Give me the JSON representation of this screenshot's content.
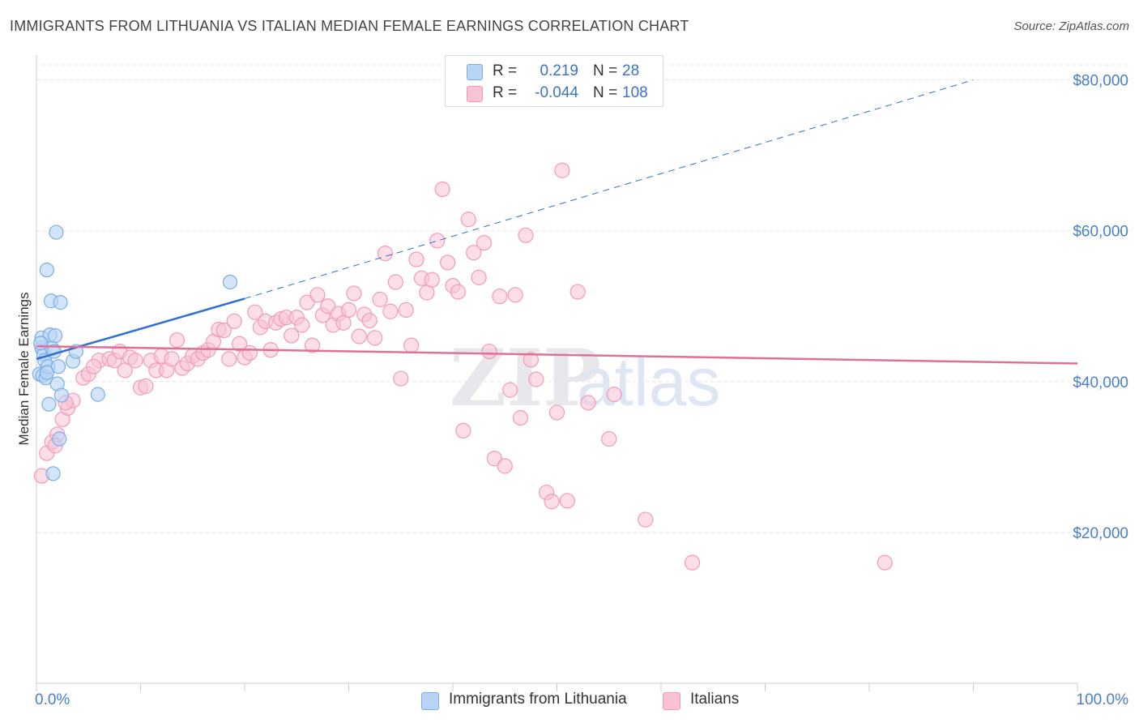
{
  "chart_data": {
    "type": "scatter",
    "title": "IMMIGRANTS FROM LITHUANIA VS ITALIAN MEDIAN FEMALE EARNINGS CORRELATION CHART",
    "source": "Source: ZipAtlas.com",
    "xlabel": "",
    "ylabel": "Median Female Earnings",
    "xlim": [
      0,
      100
    ],
    "ylim": [
      0,
      82000
    ],
    "x_tick_labels": [
      "0.0%",
      "100.0%"
    ],
    "y_ticks": [
      20000,
      40000,
      60000,
      80000
    ],
    "y_tick_labels": [
      "$20,000",
      "$40,000",
      "$60,000",
      "$80,000"
    ],
    "grid": true,
    "watermark": "ZIPatlas",
    "legend": {
      "position": "top-center",
      "entries": [
        {
          "r_label": "R =",
          "r_value": "0.219",
          "n_label": "N =",
          "n_value": "28"
        },
        {
          "r_label": "R =",
          "r_value": "-0.044",
          "n_label": "N =",
          "n_value": "108"
        }
      ]
    },
    "series": [
      {
        "name": "Immigrants from Lithuania",
        "color": "#7aaee8",
        "fill": "#b9d3f5",
        "trend_color": "#2f6fcf",
        "trend": {
          "x0": 0,
          "y0": 43000,
          "x1_solid": 20,
          "y1_solid": 51000,
          "x1_dashed": 90,
          "y1_dashed": 80000
        },
        "points": [
          [
            0.3,
            41000
          ],
          [
            0.5,
            44500
          ],
          [
            0.5,
            45800
          ],
          [
            0.6,
            40800
          ],
          [
            0.7,
            43600
          ],
          [
            0.8,
            42800
          ],
          [
            0.9,
            40500
          ],
          [
            1.0,
            54800
          ],
          [
            1.1,
            42000
          ],
          [
            1.2,
            37000
          ],
          [
            1.3,
            46200
          ],
          [
            1.4,
            50700
          ],
          [
            1.5,
            44400
          ],
          [
            1.6,
            27800
          ],
          [
            1.7,
            44000
          ],
          [
            1.8,
            46100
          ],
          [
            1.9,
            59800
          ],
          [
            2.0,
            39700
          ],
          [
            2.1,
            42000
          ],
          [
            2.2,
            32400
          ],
          [
            2.3,
            50500
          ],
          [
            2.4,
            38200
          ],
          [
            3.5,
            42700
          ],
          [
            3.8,
            44000
          ],
          [
            5.9,
            38300
          ],
          [
            18.6,
            53200
          ],
          [
            1.0,
            41200
          ],
          [
            0.4,
            45100
          ]
        ]
      },
      {
        "name": "Italians",
        "color": "#f29ab8",
        "fill": "#f8c3d5",
        "trend_color": "#e07098",
        "trend": {
          "x0": 0,
          "y0": 44700,
          "x1": 100,
          "y1": 42400
        },
        "points": [
          [
            0.5,
            27500
          ],
          [
            1.0,
            30500
          ],
          [
            1.5,
            32000
          ],
          [
            2.0,
            33000
          ],
          [
            2.5,
            35000
          ],
          [
            3.0,
            36500
          ],
          [
            3.5,
            37500
          ],
          [
            4.5,
            40500
          ],
          [
            5.0,
            41000
          ],
          [
            6.0,
            42800
          ],
          [
            7.0,
            43000
          ],
          [
            7.5,
            42800
          ],
          [
            8.0,
            44000
          ],
          [
            8.5,
            41500
          ],
          [
            9.0,
            43200
          ],
          [
            9.5,
            42800
          ],
          [
            10.0,
            39200
          ],
          [
            10.5,
            39400
          ],
          [
            11.0,
            42800
          ],
          [
            11.5,
            41500
          ],
          [
            12.0,
            43400
          ],
          [
            12.5,
            41500
          ],
          [
            13.0,
            43000
          ],
          [
            13.5,
            45500
          ],
          [
            14.0,
            41800
          ],
          [
            14.5,
            42400
          ],
          [
            15.0,
            43400
          ],
          [
            15.5,
            43000
          ],
          [
            16.0,
            43800
          ],
          [
            16.5,
            44200
          ],
          [
            17.0,
            45300
          ],
          [
            17.5,
            46900
          ],
          [
            18.0,
            46800
          ],
          [
            18.5,
            43000
          ],
          [
            19.0,
            48000
          ],
          [
            19.5,
            45000
          ],
          [
            20.0,
            43200
          ],
          [
            20.5,
            43800
          ],
          [
            21.0,
            49200
          ],
          [
            21.5,
            47200
          ],
          [
            22.0,
            48000
          ],
          [
            22.5,
            44200
          ],
          [
            23.0,
            47800
          ],
          [
            23.5,
            48300
          ],
          [
            24.0,
            48500
          ],
          [
            24.5,
            46100
          ],
          [
            25.0,
            48500
          ],
          [
            25.5,
            47500
          ],
          [
            26.0,
            50500
          ],
          [
            26.5,
            44800
          ],
          [
            27.0,
            51500
          ],
          [
            27.5,
            48800
          ],
          [
            28.0,
            50000
          ],
          [
            28.5,
            47500
          ],
          [
            29.0,
            49000
          ],
          [
            29.5,
            47800
          ],
          [
            30.0,
            49500
          ],
          [
            30.5,
            51700
          ],
          [
            31.0,
            46000
          ],
          [
            31.5,
            48900
          ],
          [
            32.0,
            48100
          ],
          [
            32.5,
            45800
          ],
          [
            33.0,
            50900
          ],
          [
            33.5,
            57000
          ],
          [
            34.0,
            49300
          ],
          [
            34.5,
            53200
          ],
          [
            35.0,
            40400
          ],
          [
            35.5,
            49500
          ],
          [
            36.0,
            44800
          ],
          [
            36.5,
            56200
          ],
          [
            37.0,
            53700
          ],
          [
            37.5,
            51800
          ],
          [
            38.0,
            53500
          ],
          [
            38.5,
            58700
          ],
          [
            39.0,
            65500
          ],
          [
            39.5,
            55800
          ],
          [
            40.0,
            52700
          ],
          [
            40.5,
            51900
          ],
          [
            41.0,
            33500
          ],
          [
            41.5,
            61500
          ],
          [
            42.0,
            57100
          ],
          [
            42.5,
            53800
          ],
          [
            43.0,
            58400
          ],
          [
            43.5,
            44000
          ],
          [
            44.0,
            29800
          ],
          [
            44.5,
            51300
          ],
          [
            45.0,
            28800
          ],
          [
            45.5,
            38900
          ],
          [
            46.0,
            51500
          ],
          [
            46.5,
            35200
          ],
          [
            47.0,
            59400
          ],
          [
            47.5,
            42900
          ],
          [
            48.0,
            40300
          ],
          [
            49.0,
            25300
          ],
          [
            49.5,
            24100
          ],
          [
            50.0,
            35900
          ],
          [
            50.5,
            68000
          ],
          [
            51.0,
            24200
          ],
          [
            52.0,
            51900
          ],
          [
            53.0,
            37200
          ],
          [
            55.0,
            32400
          ],
          [
            55.5,
            38300
          ],
          [
            58.5,
            21700
          ],
          [
            63.0,
            16000
          ],
          [
            81.5,
            16000
          ],
          [
            1.8,
            31500
          ],
          [
            2.8,
            37200
          ],
          [
            5.5,
            42000
          ]
        ]
      }
    ]
  }
}
